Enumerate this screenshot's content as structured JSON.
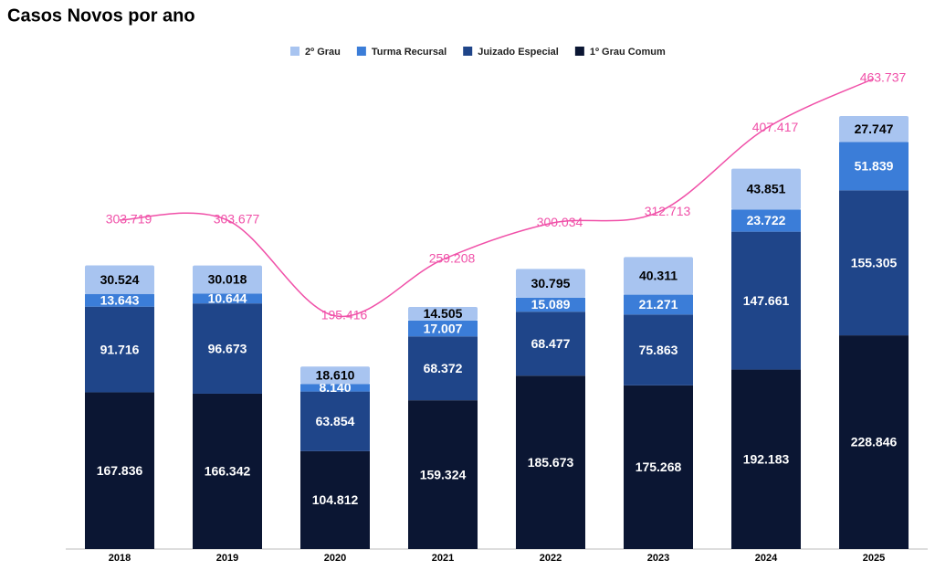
{
  "chart_data": {
    "type": "stacked-bar",
    "title": "Casos Novos por ano",
    "categories": [
      "2018",
      "2019",
      "2020",
      "2021",
      "2022",
      "2023",
      "2024",
      "2025"
    ],
    "series": [
      {
        "name": "1º Grau Comum",
        "color": "#0b1633",
        "label_color": "#ffffff",
        "values": [
          167836,
          166342,
          104812,
          159324,
          185673,
          175268,
          192183,
          228846
        ],
        "value_labels": [
          "167.836",
          "166.342",
          "104.812",
          "159.324",
          "185.673",
          "175.268",
          "192.183",
          "228.846"
        ]
      },
      {
        "name": "Juizado Especial",
        "color": "#1f4589",
        "label_color": "#ffffff",
        "values": [
          91716,
          96673,
          63854,
          68372,
          68477,
          75863,
          147661,
          155305
        ],
        "value_labels": [
          "91.716",
          "96.673",
          "63.854",
          "68.372",
          "68.477",
          "75.863",
          "147.661",
          "155.305"
        ]
      },
      {
        "name": "Turma Recursal",
        "color": "#3b7dd8",
        "label_color": "#ffffff",
        "values": [
          13643,
          10644,
          8140,
          17007,
          15089,
          21271,
          23722,
          51839
        ],
        "value_labels": [
          "13.643",
          "10.644",
          "8.140",
          "17.007",
          "15.089",
          "21.271",
          "23.722",
          "51.839"
        ]
      },
      {
        "name": "2º Grau",
        "color": "#a8c4f0",
        "label_color": "#000000",
        "values": [
          30524,
          30018,
          18610,
          14505,
          30795,
          40311,
          43851,
          27747
        ],
        "value_labels": [
          "30.524",
          "30.018",
          "18.610",
          "14.505",
          "30.795",
          "40.311",
          "43.851",
          "27.747"
        ]
      }
    ],
    "totals": {
      "type": "line",
      "color": "#f050a8",
      "values": [
        303719,
        303677,
        195416,
        259208,
        300034,
        312713,
        407417,
        463737
      ],
      "value_labels": [
        "303.719",
        "303.677",
        "195.416",
        "259.208",
        "300.034",
        "312.713",
        "407.417",
        "463.737"
      ]
    },
    "legend": "top"
  }
}
